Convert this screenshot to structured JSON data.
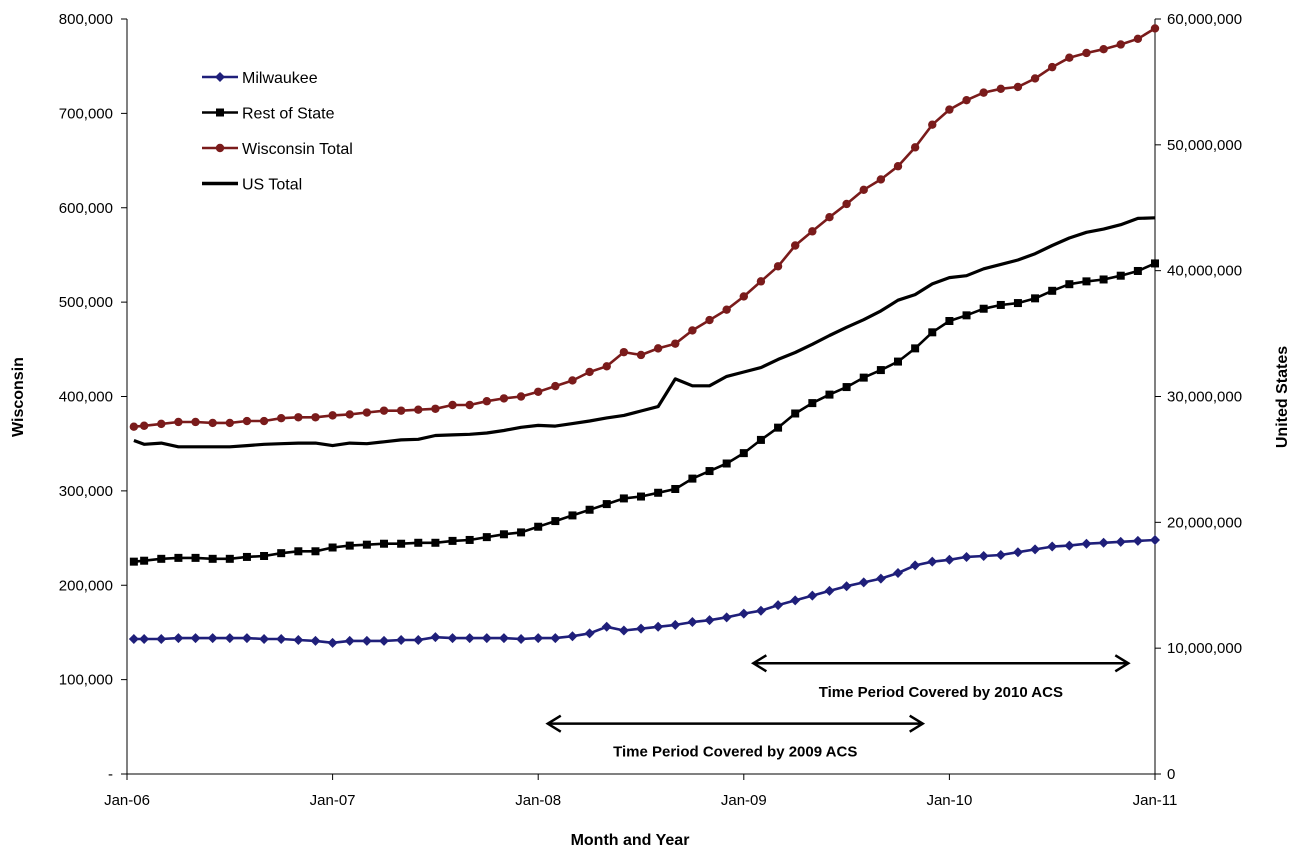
{
  "chart_data": {
    "type": "line",
    "title": "",
    "xlabel": "Month and Year",
    "ylabel": "Wisconsin",
    "y2label": "United States",
    "x_ticks": [
      "Jan-06",
      "Jan-07",
      "Jan-08",
      "Jan-09",
      "Jan-10",
      "Jan-11"
    ],
    "y_ticks": [
      "-",
      "100,000",
      "200,000",
      "300,000",
      "400,000",
      "500,000",
      "600,000",
      "700,000",
      "800,000"
    ],
    "y2_ticks": [
      "0",
      "10,000,000",
      "20,000,000",
      "30,000,000",
      "40,000,000",
      "50,000,000",
      "60,000,000"
    ],
    "ylim": [
      0,
      800000
    ],
    "y2lim": [
      0,
      60000000
    ],
    "x_months": 61,
    "grid": false,
    "legend_position": "top-left",
    "series": [
      {
        "name": "Milwaukee",
        "axis": "left",
        "color": "#1f1f7a",
        "marker": "diamond",
        "values": [
          143000,
          143000,
          143000,
          144000,
          144000,
          144000,
          144000,
          144000,
          143000,
          143000,
          142000,
          141000,
          139000,
          141000,
          141000,
          141000,
          142000,
          142000,
          145000,
          144000,
          144000,
          144000,
          144000,
          143000,
          144000,
          144000,
          146000,
          149000,
          156000,
          152000,
          154000,
          156000,
          158000,
          161000,
          163000,
          166000,
          170000,
          173000,
          179000,
          184000,
          189000,
          194000,
          199000,
          203000,
          207000,
          213000,
          221000,
          225000,
          227000,
          230000,
          231000,
          232000,
          235000,
          238000,
          241000,
          242000,
          244000,
          245000,
          246000,
          247000,
          248000
        ]
      },
      {
        "name": "Rest of State",
        "axis": "left",
        "color": "#000000",
        "marker": "square",
        "values": [
          225000,
          226000,
          228000,
          229000,
          229000,
          228000,
          228000,
          230000,
          231000,
          234000,
          236000,
          236000,
          240000,
          242000,
          243000,
          244000,
          244000,
          245000,
          245000,
          247000,
          248000,
          251000,
          254000,
          256000,
          262000,
          268000,
          274000,
          280000,
          286000,
          292000,
          294000,
          298000,
          302000,
          313000,
          321000,
          329000,
          340000,
          354000,
          367000,
          382000,
          393000,
          402000,
          410000,
          420000,
          428000,
          437000,
          451000,
          468000,
          480000,
          486000,
          493000,
          497000,
          499000,
          504000,
          512000,
          519000,
          522000,
          524000,
          528000,
          533000,
          541000
        ]
      },
      {
        "name": "Wisconsin Total",
        "axis": "left",
        "color": "#7a1b1b",
        "marker": "circle",
        "values": [
          368000,
          369000,
          371000,
          373000,
          373000,
          372000,
          372000,
          374000,
          374000,
          377000,
          378000,
          378000,
          380000,
          381000,
          383000,
          385000,
          385000,
          386000,
          387000,
          391000,
          391000,
          395000,
          398000,
          400000,
          405000,
          411000,
          417000,
          426000,
          432000,
          447000,
          444000,
          451000,
          456000,
          470000,
          481000,
          492000,
          506000,
          522000,
          538000,
          560000,
          575000,
          590000,
          604000,
          619000,
          630000,
          644000,
          664000,
          688000,
          704000,
          714000,
          722000,
          726000,
          728000,
          737000,
          749000,
          759000,
          764000,
          768000,
          773000,
          779000,
          790000
        ]
      },
      {
        "name": "US Total",
        "axis": "right",
        "color": "#000000",
        "marker": "none",
        "values": [
          26500000,
          26200000,
          26300000,
          26000000,
          26000000,
          26000000,
          26000000,
          26100000,
          26200000,
          26250000,
          26300000,
          26300000,
          26100000,
          26300000,
          26250000,
          26400000,
          26550000,
          26600000,
          26900000,
          26950000,
          27000000,
          27100000,
          27300000,
          27550000,
          27700000,
          27650000,
          27850000,
          28050000,
          28300000,
          28500000,
          28850000,
          29200000,
          31400000,
          30850000,
          30850000,
          31600000,
          31950000,
          32300000,
          32950000,
          33500000,
          34150000,
          34850000,
          35500000,
          36100000,
          36800000,
          37650000,
          38100000,
          38950000,
          39450000,
          39600000,
          40150000,
          40500000,
          40850000,
          41350000,
          42000000,
          42600000,
          43050000,
          43300000,
          43650000,
          44150000,
          44200000
        ]
      }
    ],
    "annotations": [
      {
        "label": "Time Period Covered by 2010 ACS",
        "start_month": 36.5,
        "end_month": 58.5,
        "arrow_y2": 8800000,
        "label_y2": 6500000
      },
      {
        "label": "Time Period Covered by 2009 ACS",
        "start_month": 24.5,
        "end_month": 46.5,
        "arrow_y2": 4000000,
        "label_y2": 1800000
      }
    ]
  }
}
